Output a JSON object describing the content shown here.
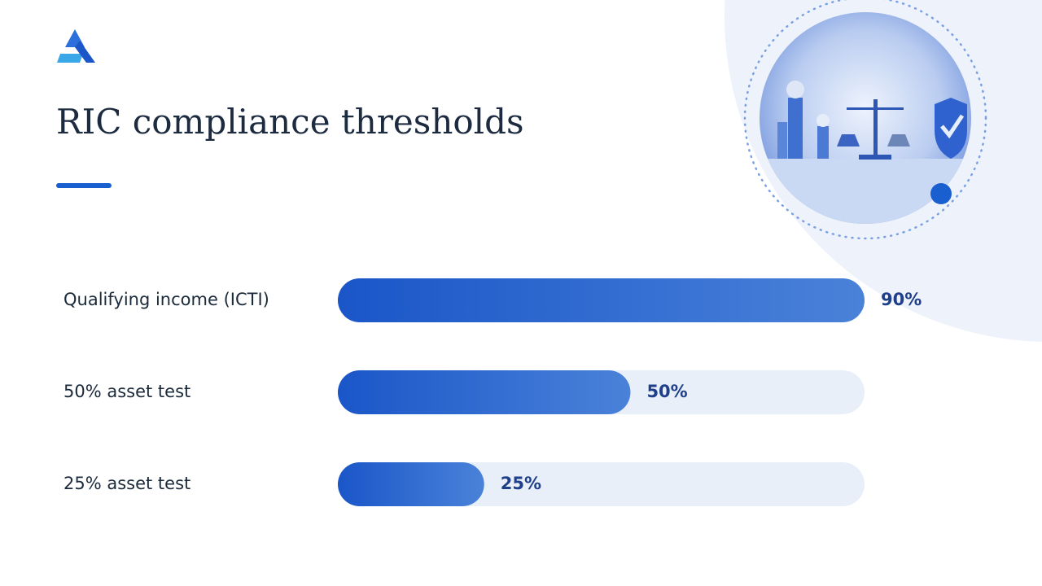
{
  "chart_data": {
    "type": "bar",
    "orientation": "horizontal",
    "title": "RIC compliance thresholds",
    "categories": [
      "Qualifying income (ICTI)",
      "50% asset test",
      "25% asset test"
    ],
    "values": [
      90,
      50,
      25
    ],
    "value_labels": [
      "90%",
      "50%",
      "25%"
    ],
    "xlim": [
      0,
      90
    ],
    "color": "#1a56c8"
  }
}
